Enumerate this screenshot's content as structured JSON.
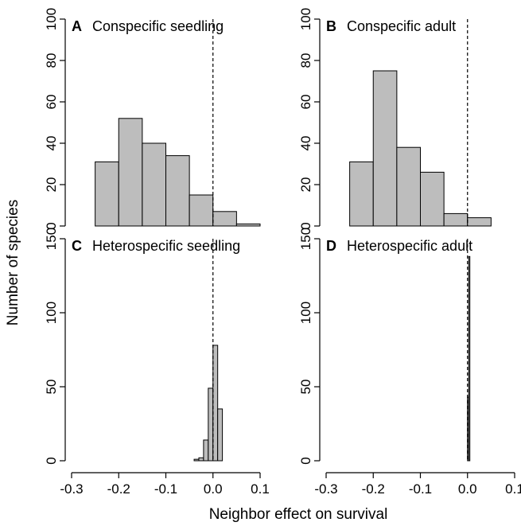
{
  "figure": {
    "ylabel": "Number of species",
    "xlabel": "Neighbor effect on survival"
  },
  "colors": {
    "bar_fill": "#bdbdbd",
    "bar_stroke": "#000000",
    "axis": "#000000",
    "reference_line": "#000000"
  },
  "chart_data": [
    {
      "type": "bar",
      "panel_letter": "A",
      "title": "Conspecific seedling",
      "xlim": [
        -0.3,
        0.1
      ],
      "ylim": [
        0,
        100
      ],
      "yticks": [
        0,
        20,
        40,
        60,
        80,
        100
      ],
      "xticks": [],
      "reference_line_x": 0.0,
      "bins": [
        {
          "x0": -0.25,
          "x1": -0.2,
          "count": 31
        },
        {
          "x0": -0.2,
          "x1": -0.15,
          "count": 52
        },
        {
          "x0": -0.15,
          "x1": -0.1,
          "count": 40
        },
        {
          "x0": -0.1,
          "x1": -0.05,
          "count": 34
        },
        {
          "x0": -0.05,
          "x1": 0.0,
          "count": 15
        },
        {
          "x0": 0.0,
          "x1": 0.05,
          "count": 7
        },
        {
          "x0": 0.05,
          "x1": 0.1,
          "count": 1
        }
      ]
    },
    {
      "type": "bar",
      "panel_letter": "B",
      "title": "Conspecific adult",
      "xlim": [
        -0.3,
        0.1
      ],
      "ylim": [
        0,
        100
      ],
      "yticks": [
        0,
        20,
        40,
        60,
        80,
        100
      ],
      "xticks": [],
      "reference_line_x": 0.0,
      "bins": [
        {
          "x0": -0.25,
          "x1": -0.2,
          "count": 31
        },
        {
          "x0": -0.2,
          "x1": -0.15,
          "count": 75
        },
        {
          "x0": -0.15,
          "x1": -0.1,
          "count": 38
        },
        {
          "x0": -0.1,
          "x1": -0.05,
          "count": 26
        },
        {
          "x0": -0.05,
          "x1": 0.0,
          "count": 6
        },
        {
          "x0": 0.0,
          "x1": 0.05,
          "count": 4
        }
      ]
    },
    {
      "type": "bar",
      "panel_letter": "C",
      "title": "Heterospecific seedling",
      "xlim": [
        -0.3,
        0.1
      ],
      "ylim": [
        0,
        150
      ],
      "yticks": [
        0,
        50,
        100,
        150
      ],
      "xticks": [
        "-0.3",
        "-0.2",
        "-0.1",
        "0.0",
        "0.1"
      ],
      "reference_line_x": 0.0,
      "bins": [
        {
          "x0": -0.3,
          "x1": -0.04,
          "count": 0
        },
        {
          "x0": -0.04,
          "x1": -0.03,
          "count": 1
        },
        {
          "x0": -0.03,
          "x1": -0.02,
          "count": 2
        },
        {
          "x0": -0.02,
          "x1": -0.01,
          "count": 14
        },
        {
          "x0": -0.01,
          "x1": 0.0,
          "count": 49
        },
        {
          "x0": 0.0,
          "x1": 0.01,
          "count": 78
        },
        {
          "x0": 0.01,
          "x1": 0.02,
          "count": 35
        },
        {
          "x0": 0.02,
          "x1": 0.1,
          "count": 0
        }
      ]
    },
    {
      "type": "bar",
      "panel_letter": "D",
      "title": "Heterospecific adult",
      "xlim": [
        -0.3,
        0.1
      ],
      "ylim": [
        0,
        150
      ],
      "yticks": [
        0,
        50,
        100,
        150
      ],
      "xticks": [
        "-0.3",
        "-0.2",
        "-0.1",
        "0.0",
        "0.1"
      ],
      "reference_line_x": 0.0,
      "bins": [
        {
          "x0": -0.3,
          "x1": 0.0,
          "count": 0
        },
        {
          "x0": 0.0,
          "x1": 0.0025,
          "count": 43
        },
        {
          "x0": 0.0025,
          "x1": 0.005,
          "count": 138
        },
        {
          "x0": 0.005,
          "x1": 0.1,
          "count": 0
        }
      ]
    }
  ]
}
